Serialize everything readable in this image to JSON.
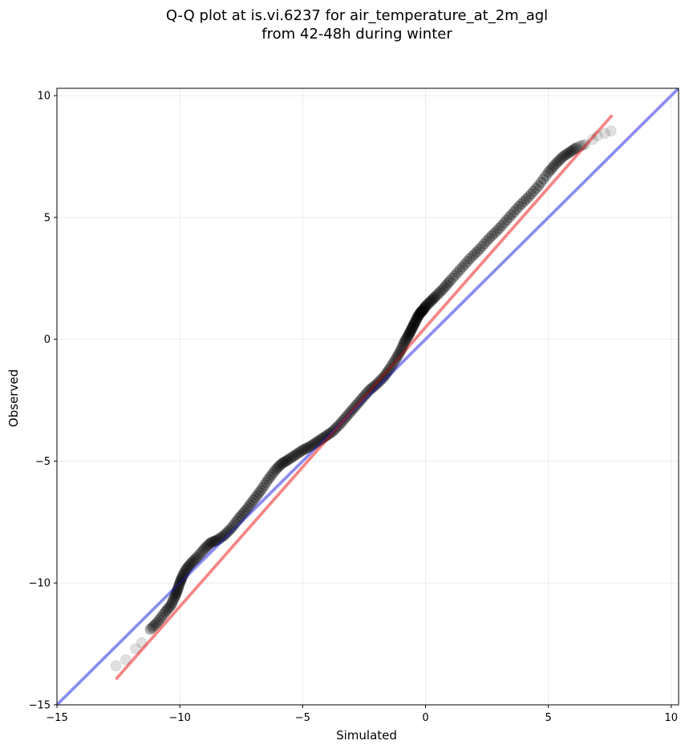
{
  "chart_data": {
    "type": "scatter",
    "title": "Q-Q plot at is.vi.6237 for air_temperature_at_2m_agl\nfrom 42-48h during winter",
    "xlabel": "Simulated",
    "ylabel": "Observed",
    "xlim": [
      -15,
      10.3
    ],
    "ylim": [
      -15,
      10.3
    ],
    "xticks": [
      -15,
      -10,
      -5,
      0,
      5,
      10
    ],
    "yticks": [
      -15,
      -10,
      -5,
      0,
      5,
      10
    ],
    "xtick_labels": [
      "−15",
      "−10",
      "−5",
      "0",
      "5",
      "10"
    ],
    "ytick_labels": [
      "−15",
      "−10",
      "−5",
      "0",
      "5",
      "10"
    ],
    "grid": true,
    "legend": false,
    "quantile_points": {
      "x": [
        -12.6,
        -12.2,
        -11.8,
        -11.55,
        -11.2,
        -10.9,
        -10.6,
        -10.35,
        -10.2,
        -10.1,
        -10.0,
        -9.9,
        -9.75,
        -9.55,
        -9.3,
        -9.0,
        -8.75,
        -8.5,
        -8.2,
        -7.9,
        -7.6,
        -7.3,
        -7.0,
        -6.7,
        -6.4,
        -6.1,
        -5.85,
        -5.6,
        -5.3,
        -5.0,
        -4.7,
        -4.4,
        -4.1,
        -3.8,
        -3.5,
        -3.2,
        -2.9,
        -2.6,
        -2.3,
        -2.0,
        -1.7,
        -1.45,
        -1.2,
        -1.0,
        -0.85,
        -0.7,
        -0.6,
        -0.5,
        -0.4,
        -0.3,
        -0.2,
        -0.1,
        0.0,
        0.2,
        0.4,
        0.7,
        1.0,
        1.4,
        1.8,
        2.2,
        2.6,
        3.0,
        3.4,
        3.8,
        4.2,
        4.6,
        5.0,
        5.3,
        5.6,
        5.9,
        6.2,
        6.5,
        6.8,
        7.0,
        7.3,
        7.55
      ],
      "y": [
        -13.4,
        -13.15,
        -12.7,
        -12.45,
        -11.9,
        -11.6,
        -11.2,
        -10.9,
        -10.55,
        -10.3,
        -10.0,
        -9.75,
        -9.45,
        -9.2,
        -8.95,
        -8.6,
        -8.35,
        -8.25,
        -8.05,
        -7.75,
        -7.35,
        -7.0,
        -6.6,
        -6.2,
        -5.75,
        -5.35,
        -5.1,
        -4.95,
        -4.75,
        -4.55,
        -4.4,
        -4.2,
        -4.0,
        -3.8,
        -3.5,
        -3.15,
        -2.8,
        -2.45,
        -2.1,
        -1.85,
        -1.55,
        -1.2,
        -0.8,
        -0.45,
        -0.1,
        0.15,
        0.35,
        0.55,
        0.75,
        0.95,
        1.1,
        1.2,
        1.35,
        1.55,
        1.75,
        2.05,
        2.4,
        2.85,
        3.3,
        3.7,
        4.15,
        4.55,
        5.0,
        5.45,
        5.85,
        6.3,
        6.85,
        7.2,
        7.5,
        7.7,
        7.9,
        8.0,
        8.2,
        8.35,
        8.45,
        8.55
      ]
    },
    "reference_lines": [
      {
        "color": "#aaaaf0",
        "x": [
          -15,
          10.3
        ],
        "y": [
          -15,
          10.3
        ]
      },
      {
        "color": "#f4a6a6",
        "x": [
          -12.6,
          7.6
        ],
        "y": [
          -13.95,
          9.2
        ]
      }
    ],
    "colors": {
      "points": "#000000",
      "identity_line": "#aaaaf0",
      "fit_line": "#f4a6a6",
      "grid": "#ebebeb"
    }
  }
}
